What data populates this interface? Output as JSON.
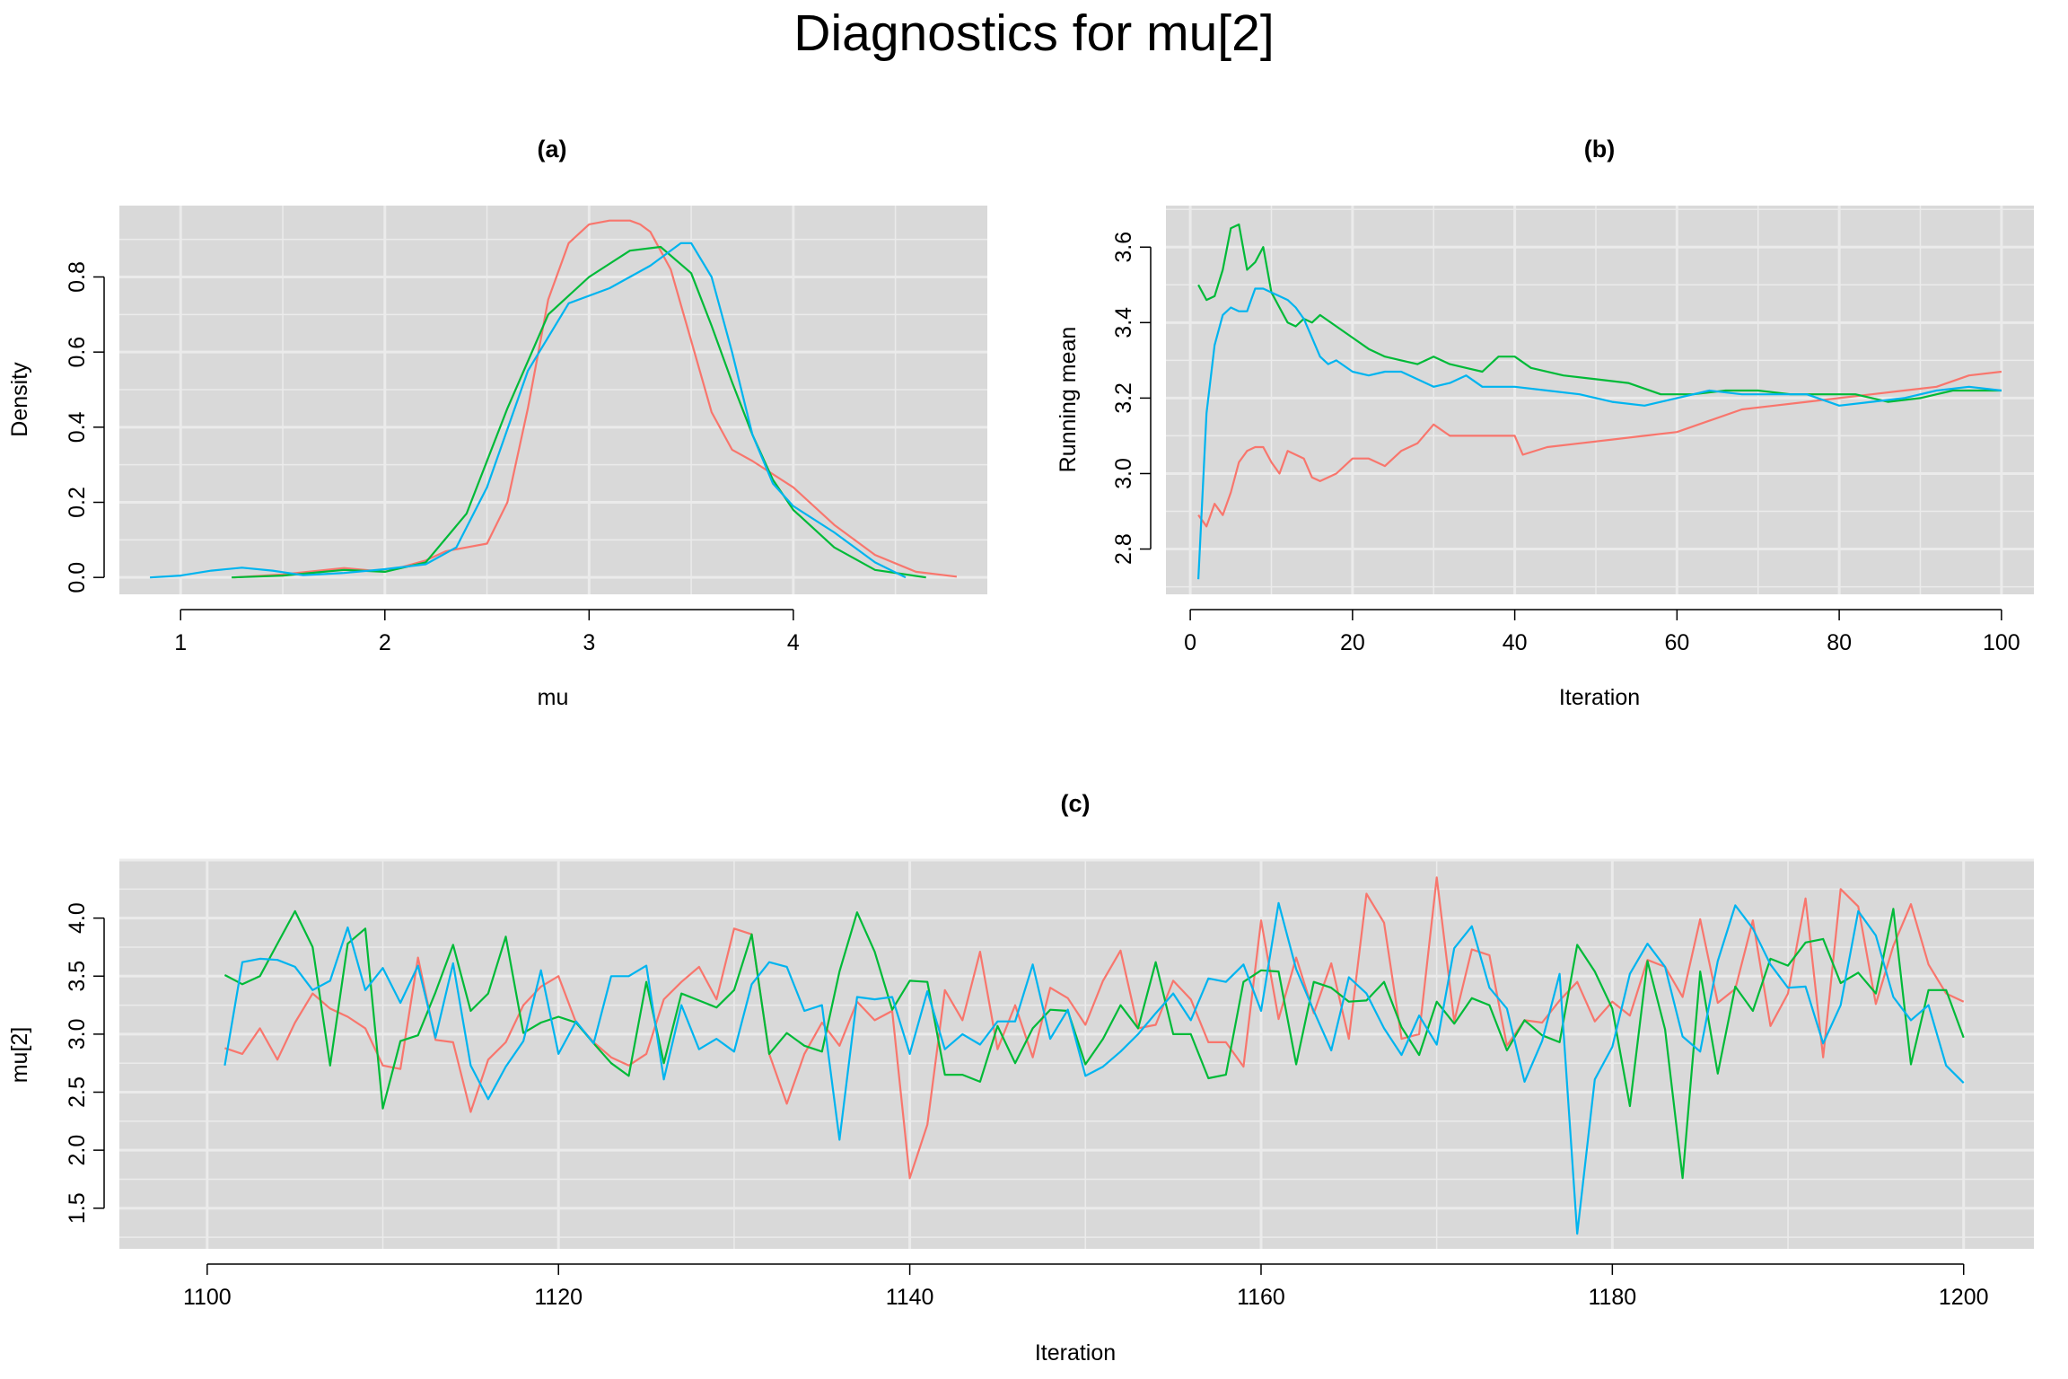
{
  "figure": {
    "title": "Diagnostics for mu[2]",
    "colors": {
      "chain1": "#F8766D",
      "chain2": "#00BA38",
      "chain3": "#00B4EF",
      "panel_bg": "#D9D9D9",
      "grid": "#EBEBEB"
    }
  },
  "chart_data": [
    {
      "id": "a",
      "type": "line",
      "title": "(a)",
      "xlabel": "mu",
      "ylabel": "Density",
      "xlim": [
        0.7,
        4.95
      ],
      "ylim": [
        -0.045,
        0.99
      ],
      "xticks": [
        "1",
        "2",
        "3",
        "4"
      ],
      "yticks": [
        "0.0",
        "0.2",
        "0.4",
        "0.6",
        "0.8"
      ],
      "grid": true,
      "series": [
        {
          "color": "#F8766D",
          "x": [
            1.26,
            1.5,
            1.8,
            2.0,
            2.2,
            2.3,
            2.4,
            2.5,
            2.6,
            2.7,
            2.8,
            2.9,
            3.0,
            3.1,
            3.2,
            3.25,
            3.3,
            3.4,
            3.5,
            3.6,
            3.7,
            3.8,
            4.0,
            4.2,
            4.4,
            4.6,
            4.8
          ],
          "y": [
            0.0,
            0.008,
            0.025,
            0.015,
            0.045,
            0.07,
            0.08,
            0.09,
            0.2,
            0.45,
            0.74,
            0.89,
            0.94,
            0.95,
            0.95,
            0.94,
            0.92,
            0.82,
            0.63,
            0.44,
            0.34,
            0.31,
            0.24,
            0.14,
            0.06,
            0.015,
            0.002
          ]
        },
        {
          "color": "#00BA38",
          "x": [
            1.25,
            1.5,
            1.8,
            2.0,
            2.2,
            2.4,
            2.6,
            2.8,
            3.0,
            3.2,
            3.35,
            3.5,
            3.6,
            3.7,
            3.8,
            3.9,
            4.0,
            4.2,
            4.4,
            4.65
          ],
          "y": [
            0.0,
            0.005,
            0.02,
            0.015,
            0.04,
            0.17,
            0.45,
            0.7,
            0.8,
            0.87,
            0.88,
            0.81,
            0.67,
            0.52,
            0.38,
            0.26,
            0.18,
            0.08,
            0.02,
            0.0
          ]
        },
        {
          "color": "#00B4EF",
          "x": [
            0.85,
            1.0,
            1.15,
            1.3,
            1.45,
            1.6,
            1.8,
            2.0,
            2.2,
            2.35,
            2.5,
            2.7,
            2.9,
            3.1,
            3.3,
            3.45,
            3.5,
            3.6,
            3.7,
            3.8,
            3.9,
            4.0,
            4.2,
            4.4,
            4.55
          ],
          "y": [
            0.0,
            0.005,
            0.018,
            0.026,
            0.018,
            0.006,
            0.012,
            0.022,
            0.035,
            0.08,
            0.24,
            0.55,
            0.73,
            0.77,
            0.83,
            0.89,
            0.89,
            0.8,
            0.6,
            0.38,
            0.25,
            0.19,
            0.12,
            0.04,
            0.0
          ]
        }
      ]
    },
    {
      "id": "b",
      "type": "line",
      "title": "(b)",
      "xlabel": "Iteration",
      "ylabel": "Running mean",
      "xlim": [
        -3,
        104
      ],
      "ylim": [
        2.68,
        3.71
      ],
      "xticks": [
        "0",
        "20",
        "40",
        "60",
        "80",
        "100"
      ],
      "yticks": [
        "2.8",
        "3.0",
        "3.2",
        "3.4",
        "3.6"
      ],
      "grid": true,
      "series": [
        {
          "color": "#F8766D",
          "x": [
            1,
            2,
            3,
            4,
            5,
            6,
            7,
            8,
            9,
            10,
            11,
            12,
            13,
            14,
            15,
            16,
            17,
            18,
            20,
            22,
            24,
            26,
            28,
            30,
            32,
            36,
            40,
            41,
            44,
            48,
            52,
            56,
            60,
            64,
            68,
            72,
            76,
            80,
            84,
            88,
            92,
            96,
            100
          ],
          "y": [
            2.89,
            2.86,
            2.92,
            2.89,
            2.95,
            3.03,
            3.06,
            3.07,
            3.07,
            3.03,
            3.0,
            3.06,
            3.05,
            3.04,
            2.99,
            2.98,
            2.99,
            3.0,
            3.04,
            3.04,
            3.02,
            3.06,
            3.08,
            3.13,
            3.1,
            3.1,
            3.1,
            3.05,
            3.07,
            3.08,
            3.09,
            3.1,
            3.11,
            3.14,
            3.17,
            3.18,
            3.19,
            3.2,
            3.21,
            3.22,
            3.23,
            3.26,
            3.27
          ]
        },
        {
          "color": "#00BA38",
          "x": [
            1,
            2,
            3,
            4,
            5,
            6,
            7,
            8,
            9,
            10,
            11,
            12,
            13,
            14,
            15,
            16,
            18,
            20,
            22,
            24,
            26,
            28,
            30,
            32,
            34,
            36,
            38,
            40,
            42,
            46,
            50,
            54,
            58,
            62,
            66,
            70,
            74,
            78,
            82,
            86,
            90,
            94,
            100
          ],
          "y": [
            3.5,
            3.46,
            3.47,
            3.54,
            3.65,
            3.66,
            3.54,
            3.56,
            3.6,
            3.48,
            3.44,
            3.4,
            3.39,
            3.41,
            3.4,
            3.42,
            3.39,
            3.36,
            3.33,
            3.31,
            3.3,
            3.29,
            3.31,
            3.29,
            3.28,
            3.27,
            3.31,
            3.31,
            3.28,
            3.26,
            3.25,
            3.24,
            3.21,
            3.21,
            3.22,
            3.22,
            3.21,
            3.21,
            3.21,
            3.19,
            3.2,
            3.22,
            3.22
          ]
        },
        {
          "color": "#00B4EF",
          "x": [
            1,
            2,
            3,
            4,
            5,
            6,
            7,
            8,
            9,
            10,
            11,
            12,
            13,
            14,
            15,
            16,
            17,
            18,
            20,
            22,
            24,
            26,
            28,
            30,
            32,
            34,
            36,
            40,
            44,
            48,
            52,
            56,
            60,
            64,
            68,
            72,
            76,
            80,
            84,
            88,
            92,
            96,
            100
          ],
          "y": [
            2.72,
            3.16,
            3.34,
            3.42,
            3.44,
            3.43,
            3.43,
            3.49,
            3.49,
            3.48,
            3.47,
            3.46,
            3.44,
            3.41,
            3.36,
            3.31,
            3.29,
            3.3,
            3.27,
            3.26,
            3.27,
            3.27,
            3.25,
            3.23,
            3.24,
            3.26,
            3.23,
            3.23,
            3.22,
            3.21,
            3.19,
            3.18,
            3.2,
            3.22,
            3.21,
            3.21,
            3.21,
            3.18,
            3.19,
            3.2,
            3.22,
            3.23,
            3.22
          ]
        }
      ]
    },
    {
      "id": "c",
      "type": "line",
      "title": "(c)",
      "xlabel": "Iteration",
      "ylabel": "mu[2]",
      "xlim": [
        1095,
        1204
      ],
      "ylim": [
        1.15,
        4.5
      ],
      "xticks": [
        "1100",
        "1120",
        "1140",
        "1160",
        "1180",
        "1200"
      ],
      "yticks": [
        "1.5",
        "2.0",
        "2.5",
        "3.0",
        "3.5",
        "4.0"
      ],
      "grid": true,
      "x_start": 1101,
      "series": [
        {
          "color": "#F8766D",
          "values": [
            2.88,
            2.83,
            3.05,
            2.78,
            3.1,
            3.35,
            3.22,
            3.15,
            3.05,
            2.73,
            2.7,
            3.66,
            2.95,
            2.93,
            2.33,
            2.78,
            2.93,
            3.25,
            3.41,
            3.5,
            3.1,
            2.93,
            2.8,
            2.73,
            2.83,
            3.3,
            3.45,
            3.58,
            3.3,
            3.91,
            3.86,
            2.83,
            2.4,
            2.83,
            3.1,
            2.9,
            3.28,
            3.12,
            3.2,
            1.76,
            2.22,
            3.38,
            3.12,
            3.71,
            2.87,
            3.25,
            2.8,
            3.4,
            3.31,
            3.08,
            3.46,
            3.72,
            3.05,
            3.08,
            3.46,
            3.3,
            2.93,
            2.93,
            2.72,
            3.98,
            3.13,
            3.66,
            3.18,
            3.61,
            2.96,
            4.21,
            3.96,
            2.96,
            3.0,
            4.35,
            3.11,
            3.73,
            3.68,
            2.9,
            3.12,
            3.1,
            3.29,
            3.45,
            3.11,
            3.28,
            3.16,
            3.64,
            3.58,
            3.32,
            3.99,
            3.27,
            3.39,
            3.98,
            3.07,
            3.35,
            4.17,
            2.8,
            4.25,
            4.1,
            3.26,
            3.76,
            4.12,
            3.6,
            3.35,
            3.28
          ]
        },
        {
          "color": "#00BA38",
          "values": [
            3.51,
            3.43,
            3.5,
            3.78,
            4.06,
            3.75,
            2.73,
            3.78,
            3.91,
            2.36,
            2.94,
            2.99,
            3.36,
            3.77,
            3.2,
            3.35,
            3.84,
            3.01,
            3.1,
            3.15,
            3.1,
            2.92,
            2.75,
            2.64,
            3.45,
            2.75,
            3.35,
            3.29,
            3.23,
            3.38,
            3.86,
            2.83,
            3.01,
            2.9,
            2.85,
            3.54,
            4.05,
            3.71,
            3.21,
            3.46,
            3.45,
            2.65,
            2.65,
            2.59,
            3.07,
            2.75,
            3.05,
            3.21,
            3.2,
            2.74,
            2.96,
            3.25,
            3.05,
            3.62,
            3.0,
            3.0,
            2.62,
            2.65,
            3.45,
            3.55,
            3.54,
            2.74,
            3.45,
            3.4,
            3.28,
            3.29,
            3.45,
            3.06,
            2.82,
            3.28,
            3.09,
            3.31,
            3.25,
            2.86,
            3.12,
            2.99,
            2.93,
            3.77,
            3.54,
            3.22,
            2.38,
            3.63,
            3.04,
            1.76,
            3.54,
            2.66,
            3.41,
            3.2,
            3.65,
            3.59,
            3.79,
            3.82,
            3.44,
            3.53,
            3.35,
            4.08,
            2.74,
            3.38,
            3.38,
            2.97
          ]
        },
        {
          "color": "#00B4EF",
          "values": [
            2.73,
            3.62,
            3.65,
            3.64,
            3.58,
            3.38,
            3.46,
            3.92,
            3.38,
            3.57,
            3.27,
            3.59,
            2.97,
            3.61,
            2.73,
            2.44,
            2.72,
            2.94,
            3.55,
            2.83,
            3.11,
            2.92,
            3.5,
            3.5,
            3.59,
            2.61,
            3.25,
            2.87,
            2.96,
            2.85,
            3.43,
            3.62,
            3.58,
            3.2,
            3.25,
            2.09,
            3.32,
            3.3,
            3.32,
            2.83,
            3.37,
            2.87,
            3.0,
            2.91,
            3.11,
            3.11,
            3.6,
            2.96,
            3.21,
            2.64,
            2.72,
            2.85,
            3.0,
            3.18,
            3.35,
            3.12,
            3.48,
            3.45,
            3.6,
            3.2,
            4.13,
            3.56,
            3.2,
            2.86,
            3.49,
            3.35,
            3.05,
            2.82,
            3.16,
            2.91,
            3.74,
            3.93,
            3.4,
            3.22,
            2.59,
            2.94,
            3.52,
            1.28,
            2.61,
            2.89,
            3.52,
            3.78,
            3.58,
            2.98,
            2.85,
            3.63,
            4.11,
            3.91,
            3.6,
            3.4,
            3.41,
            2.92,
            3.25,
            4.06,
            3.85,
            3.32,
            3.12,
            3.25,
            2.73,
            2.58
          ]
        }
      ]
    }
  ]
}
